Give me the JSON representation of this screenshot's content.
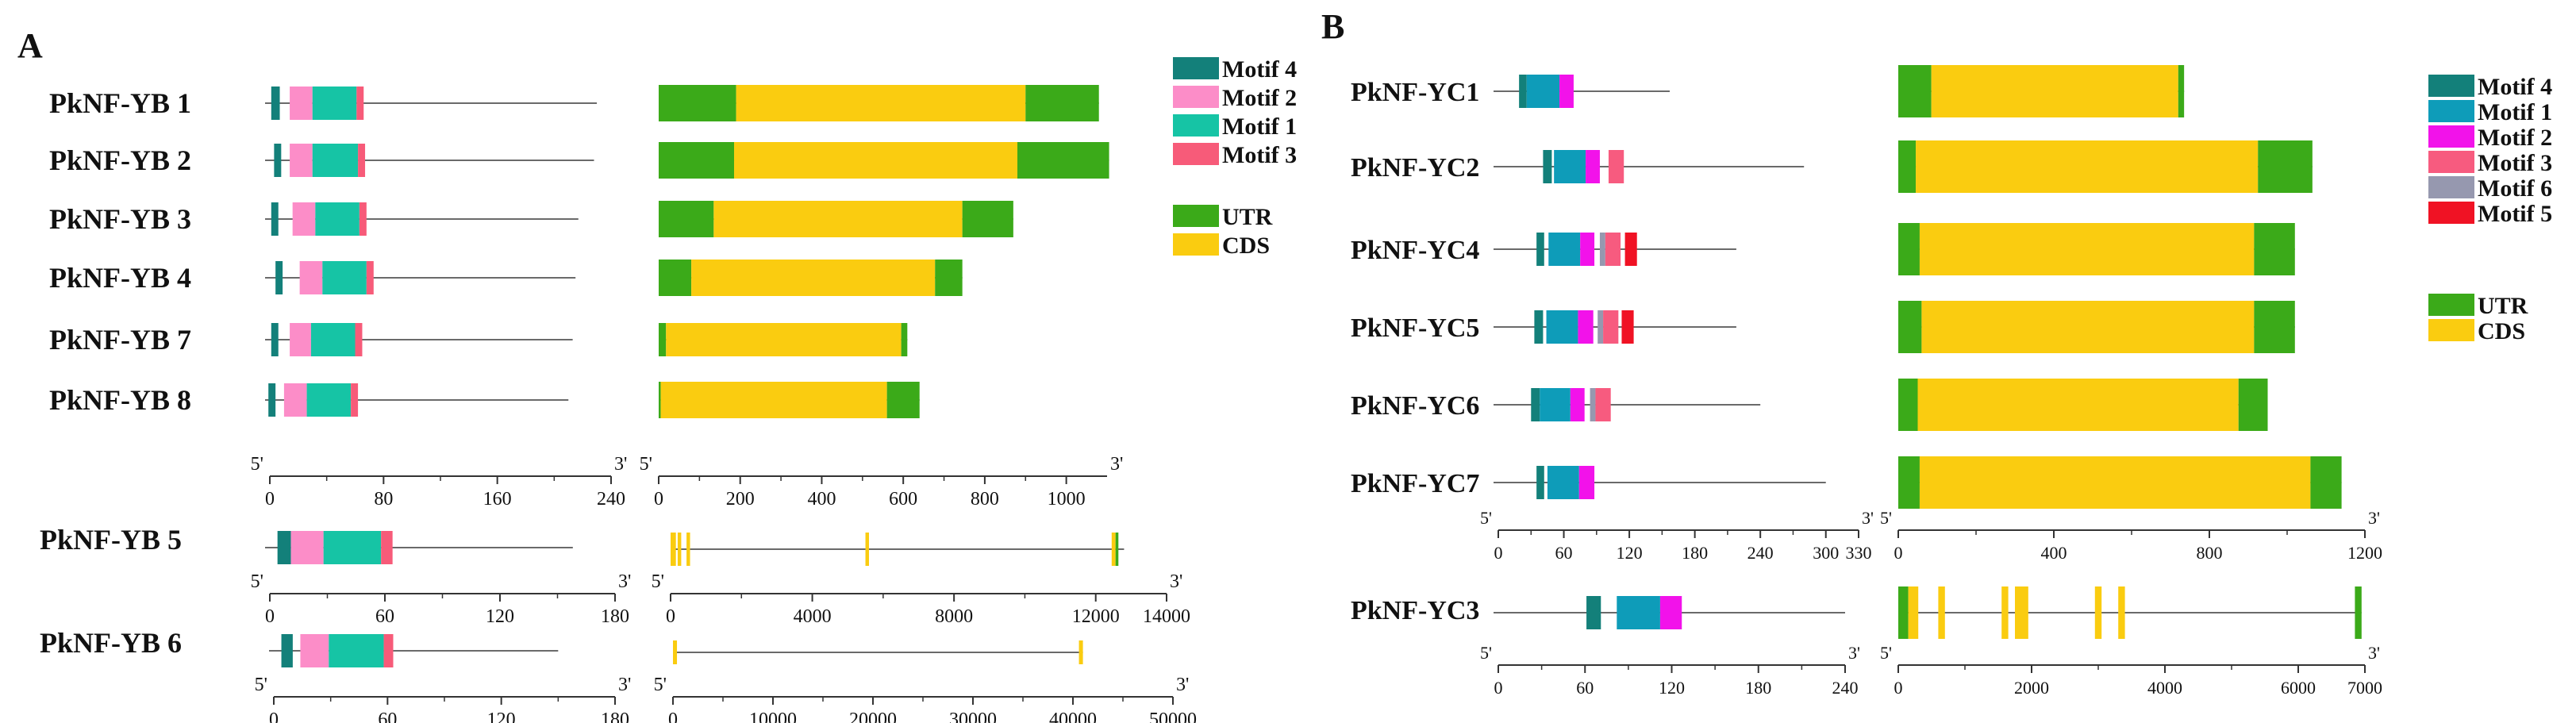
{
  "colors": {
    "motif1_B": "#16C4A5",
    "motif2_B": "#FC8DC8",
    "motif3_B": "#F75B79",
    "motif4": "#13807A",
    "motif1_C": "#0E9CB9",
    "motif2_C": "#F212EA",
    "motif3_C": "#F75B7F",
    "motif6_C": "#9698AF",
    "motif5_C": "#F01224",
    "utr": "#3BAA19",
    "cds": "#FACC10",
    "line": "#6a6a6a",
    "text": "#111111"
  },
  "panel_A": {
    "label": "A",
    "motif_legend": [
      {
        "key": "motif4",
        "label": "Motif 4"
      },
      {
        "key": "motif2_B",
        "label": "Motif 2"
      },
      {
        "key": "motif1_B",
        "label": "Motif 1"
      },
      {
        "key": "motif3_B",
        "label": "Motif 3"
      }
    ],
    "gene_legend": [
      {
        "key": "utr",
        "label": "UTR"
      },
      {
        "key": "cds",
        "label": "CDS"
      }
    ],
    "genes_top": [
      "PkNF-YB 1",
      "PkNF-YB 2",
      "PkNF-YB 3",
      "PkNF-YB 4",
      "PkNF-YB 7",
      "PkNF-YB 8"
    ],
    "protein_axis_top": {
      "start_label": "5'",
      "end_label": "3'",
      "max": 240,
      "ticks": [
        "0",
        "80",
        "160",
        "240"
      ]
    },
    "gene_axis_top": {
      "start_label": "5'",
      "end_label": "3'",
      "max": 1100,
      "ticks": [
        "0",
        "200",
        "400",
        "600",
        "800",
        "1000"
      ]
    },
    "gene_YB5": "PkNF-YB 5",
    "protein_axis_YB5": {
      "start_label": "5'",
      "end_label": "3'",
      "max": 180,
      "ticks": [
        "0",
        "60",
        "120",
        "180"
      ]
    },
    "gene_axis_YB5": {
      "start_label": "5'",
      "end_label": "3'",
      "max": 14000,
      "ticks": [
        "0",
        "4000",
        "8000",
        "12000",
        "14000"
      ]
    },
    "gene_YB6": "PkNF-YB 6",
    "protein_axis_YB6": {
      "start_label": "5'",
      "end_label": "3'",
      "max": 180,
      "ticks": [
        "0",
        "60",
        "120",
        "180"
      ]
    },
    "gene_axis_YB6": {
      "start_label": "5'",
      "end_label": "3'",
      "max": 50000,
      "ticks": [
        "0",
        "10000",
        "20000",
        "30000",
        "40000",
        "50000"
      ]
    }
  },
  "panel_B": {
    "label": "B",
    "motif_legend": [
      {
        "key": "motif4",
        "label": "Motif 4"
      },
      {
        "key": "motif1_C",
        "label": "Motif 1"
      },
      {
        "key": "motif2_C",
        "label": "Motif 2"
      },
      {
        "key": "motif3_C",
        "label": "Motif 3"
      },
      {
        "key": "motif6_C",
        "label": "Motif 6"
      },
      {
        "key": "motif5_C",
        "label": "Motif 5"
      }
    ],
    "gene_legend": [
      {
        "key": "utr",
        "label": "UTR"
      },
      {
        "key": "cds",
        "label": "CDS"
      }
    ],
    "genes_top": [
      "PkNF-YC1",
      "PkNF-YC2",
      "PkNF-YC4",
      "PkNF-YC5",
      "PkNF-YC6",
      "PkNF-YC7"
    ],
    "protein_axis_top": {
      "start_label": "5'",
      "end_label": "3'",
      "max": 330,
      "ticks": [
        "0",
        "60",
        "120",
        "180",
        "240",
        "300",
        "330"
      ]
    },
    "gene_axis_top": {
      "start_label": "5'",
      "end_label": "3'",
      "max": 1200,
      "ticks": [
        "0",
        "400",
        "800",
        "1200"
      ]
    },
    "gene_YC3": "PkNF-YC3",
    "protein_axis_YC3": {
      "start_label": "5'",
      "end_label": "3'",
      "max": 240,
      "ticks": [
        "0",
        "60",
        "120",
        "180",
        "240"
      ]
    },
    "gene_axis_YC3": {
      "start_label": "5'",
      "end_label": "3'",
      "max": 7000,
      "ticks": [
        "0",
        "2000",
        "4000",
        "6000",
        "7000"
      ]
    }
  }
}
